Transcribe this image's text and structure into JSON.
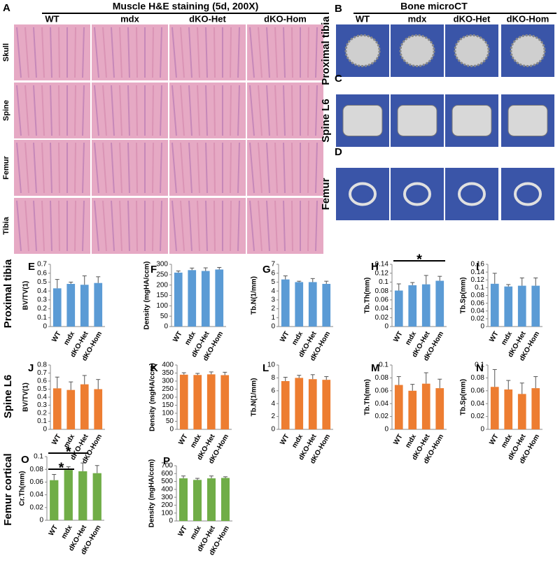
{
  "histology": {
    "panel": "A",
    "title": "Muscle H&E staining (5d, 200X)",
    "columns": [
      "WT",
      "mdx",
      "dKO-Het",
      "dKO-Hom"
    ],
    "rows": [
      "Skull",
      "Spine",
      "Femur",
      "Tibia"
    ]
  },
  "microct": {
    "title": "Bone microCT",
    "columns": [
      "WT",
      "mdx",
      "dKO-Het",
      "dKO-Hom"
    ],
    "rows": [
      {
        "panel": "B",
        "label": "Proximal tibia"
      },
      {
        "panel": "C",
        "label": "Spine L6"
      },
      {
        "panel": "D",
        "label": "Femur"
      }
    ]
  },
  "row_labels": [
    "Proximal tibia",
    "Spine L6",
    "Femur cortical"
  ],
  "chart_data": [
    {
      "type": "bar",
      "panel": "E",
      "ylabel": "BV/TV(1)",
      "categories": [
        "WT",
        "mdx",
        "dKO-Het",
        "dKO-Hom"
      ],
      "values": [
        0.43,
        0.48,
        0.47,
        0.49
      ],
      "errors": [
        0.1,
        0.02,
        0.1,
        0.07
      ],
      "color": "#5b9bd5",
      "ylim": [
        0,
        0.7
      ],
      "yticks": [
        0,
        0.1,
        0.2,
        0.3,
        0.4,
        0.5,
        0.6,
        0.7
      ]
    },
    {
      "type": "bar",
      "panel": "F",
      "ylabel": "Density (mgHA/ccm)",
      "categories": [
        "WT",
        "mdx",
        "dKO-Het",
        "dKO-Hom"
      ],
      "values": [
        260,
        272,
        268,
        275
      ],
      "errors": [
        8,
        10,
        15,
        10
      ],
      "color": "#5b9bd5",
      "ylim": [
        0,
        300
      ],
      "yticks": [
        0,
        50,
        100,
        150,
        200,
        250,
        300
      ]
    },
    {
      "type": "bar",
      "panel": "G",
      "ylabel": "Tb.N(1/mm)",
      "categories": [
        "WT",
        "mdx",
        "dKO-Het",
        "dKO-Hom"
      ],
      "values": [
        5.3,
        5.0,
        5.0,
        4.8
      ],
      "errors": [
        0.4,
        0.1,
        0.4,
        0.3
      ],
      "color": "#5b9bd5",
      "ylim": [
        0,
        7
      ],
      "yticks": [
        0,
        1,
        2,
        3,
        4,
        5,
        6,
        7
      ]
    },
    {
      "type": "bar",
      "panel": "H",
      "ylabel": "Tb.Th(mm)",
      "categories": [
        "WT",
        "mdx",
        "dKO-Het",
        "dKO-Hom"
      ],
      "values": [
        0.081,
        0.093,
        0.095,
        0.103
      ],
      "errors": [
        0.015,
        0.006,
        0.02,
        0.01
      ],
      "color": "#5b9bd5",
      "ylim": [
        0,
        0.14
      ],
      "yticks": [
        0,
        0.02,
        0.04,
        0.06,
        0.08,
        0.1,
        0.12,
        0.14
      ],
      "significance": [
        {
          "label": "*",
          "between": [
            "WT",
            "dKO-Hom"
          ]
        }
      ]
    },
    {
      "type": "bar",
      "panel": "I",
      "ylabel": "Tb.Sp(mm)",
      "categories": [
        "WT",
        "mdx",
        "dKO-Het",
        "dKO-Hom"
      ],
      "values": [
        0.11,
        0.103,
        0.105,
        0.105
      ],
      "errors": [
        0.027,
        0.005,
        0.02,
        0.02
      ],
      "color": "#5b9bd5",
      "ylim": [
        0,
        0.16
      ],
      "yticks": [
        0,
        0.02,
        0.04,
        0.06,
        0.08,
        0.1,
        0.12,
        0.14,
        0.16
      ]
    },
    {
      "type": "bar",
      "panel": "J",
      "ylabel": "BV/TV(1)",
      "categories": [
        "WT",
        "mdx",
        "dKO-Het",
        "dKO-Hom"
      ],
      "values": [
        0.51,
        0.49,
        0.56,
        0.5
      ],
      "errors": [
        0.14,
        0.1,
        0.11,
        0.12
      ],
      "color": "#ed7d31",
      "ylim": [
        0,
        0.8
      ],
      "yticks": [
        0,
        0.1,
        0.2,
        0.3,
        0.4,
        0.5,
        0.6,
        0.7,
        0.8
      ]
    },
    {
      "type": "bar",
      "panel": "K",
      "ylabel": "Density (mgHA/ccm)",
      "categories": [
        "WT",
        "mdx",
        "dKO-Het",
        "dKO-Hom"
      ],
      "values": [
        340,
        338,
        342,
        337
      ],
      "errors": [
        12,
        10,
        15,
        18
      ],
      "color": "#ed7d31",
      "ylim": [
        0,
        400
      ],
      "yticks": [
        0,
        50,
        100,
        150,
        200,
        250,
        300,
        350,
        400
      ]
    },
    {
      "type": "bar",
      "panel": "L",
      "ylabel": "Tb.N(1/mm)",
      "categories": [
        "WT",
        "mdx",
        "dKO-Het",
        "dKO-Hom"
      ],
      "values": [
        7.5,
        8.0,
        7.8,
        7.7
      ],
      "errors": [
        0.6,
        0.4,
        0.7,
        0.5
      ],
      "color": "#ed7d31",
      "ylim": [
        0,
        10
      ],
      "yticks": [
        0,
        2,
        4,
        6,
        8,
        10
      ]
    },
    {
      "type": "bar",
      "panel": "M",
      "ylabel": "Tb.Th(mm)",
      "categories": [
        "WT",
        "mdx",
        "dKO-Het",
        "dKO-Hom"
      ],
      "values": [
        0.069,
        0.06,
        0.071,
        0.064
      ],
      "errors": [
        0.013,
        0.01,
        0.017,
        0.014
      ],
      "color": "#ed7d31",
      "ylim": [
        0,
        0.1
      ],
      "yticks": [
        0,
        0.02,
        0.04,
        0.06,
        0.08,
        0.1
      ]
    },
    {
      "type": "bar",
      "panel": "N",
      "ylabel": "Tb.Sp(mm)",
      "categories": [
        "WT",
        "mdx",
        "dKO-Het",
        "dKO-Hom"
      ],
      "values": [
        0.066,
        0.062,
        0.055,
        0.064
      ],
      "errors": [
        0.027,
        0.014,
        0.017,
        0.018
      ],
      "color": "#ed7d31",
      "ylim": [
        0,
        0.1
      ],
      "yticks": [
        0,
        0.02,
        0.04,
        0.06,
        0.08,
        0.1
      ]
    },
    {
      "type": "bar",
      "panel": "O",
      "ylabel": "Cr.Th(mm)",
      "categories": [
        "WT",
        "mdx",
        "dKO-Het",
        "dKO-Hom"
      ],
      "values": [
        0.063,
        0.079,
        0.077,
        0.074
      ],
      "errors": [
        0.009,
        0.005,
        0.013,
        0.012
      ],
      "color": "#70ad47",
      "ylim": [
        0,
        0.1
      ],
      "yticks": [
        0,
        0.02,
        0.04,
        0.06,
        0.08,
        0.1
      ],
      "significance": [
        {
          "label": "*",
          "between": [
            "WT",
            "dKO-Het"
          ]
        },
        {
          "label": "*",
          "between": [
            "WT",
            "mdx"
          ]
        }
      ]
    },
    {
      "type": "bar",
      "panel": "P",
      "ylabel": "Density (mgHA/ccm)",
      "categories": [
        "WT",
        "mdx",
        "dKO-Het",
        "dKO-Hom"
      ],
      "values": [
        540,
        520,
        540,
        545
      ],
      "errors": [
        30,
        20,
        30,
        15
      ],
      "color": "#70ad47",
      "ylim": [
        0,
        700
      ],
      "yticks": [
        0,
        100,
        200,
        300,
        400,
        500,
        600,
        700
      ]
    }
  ]
}
